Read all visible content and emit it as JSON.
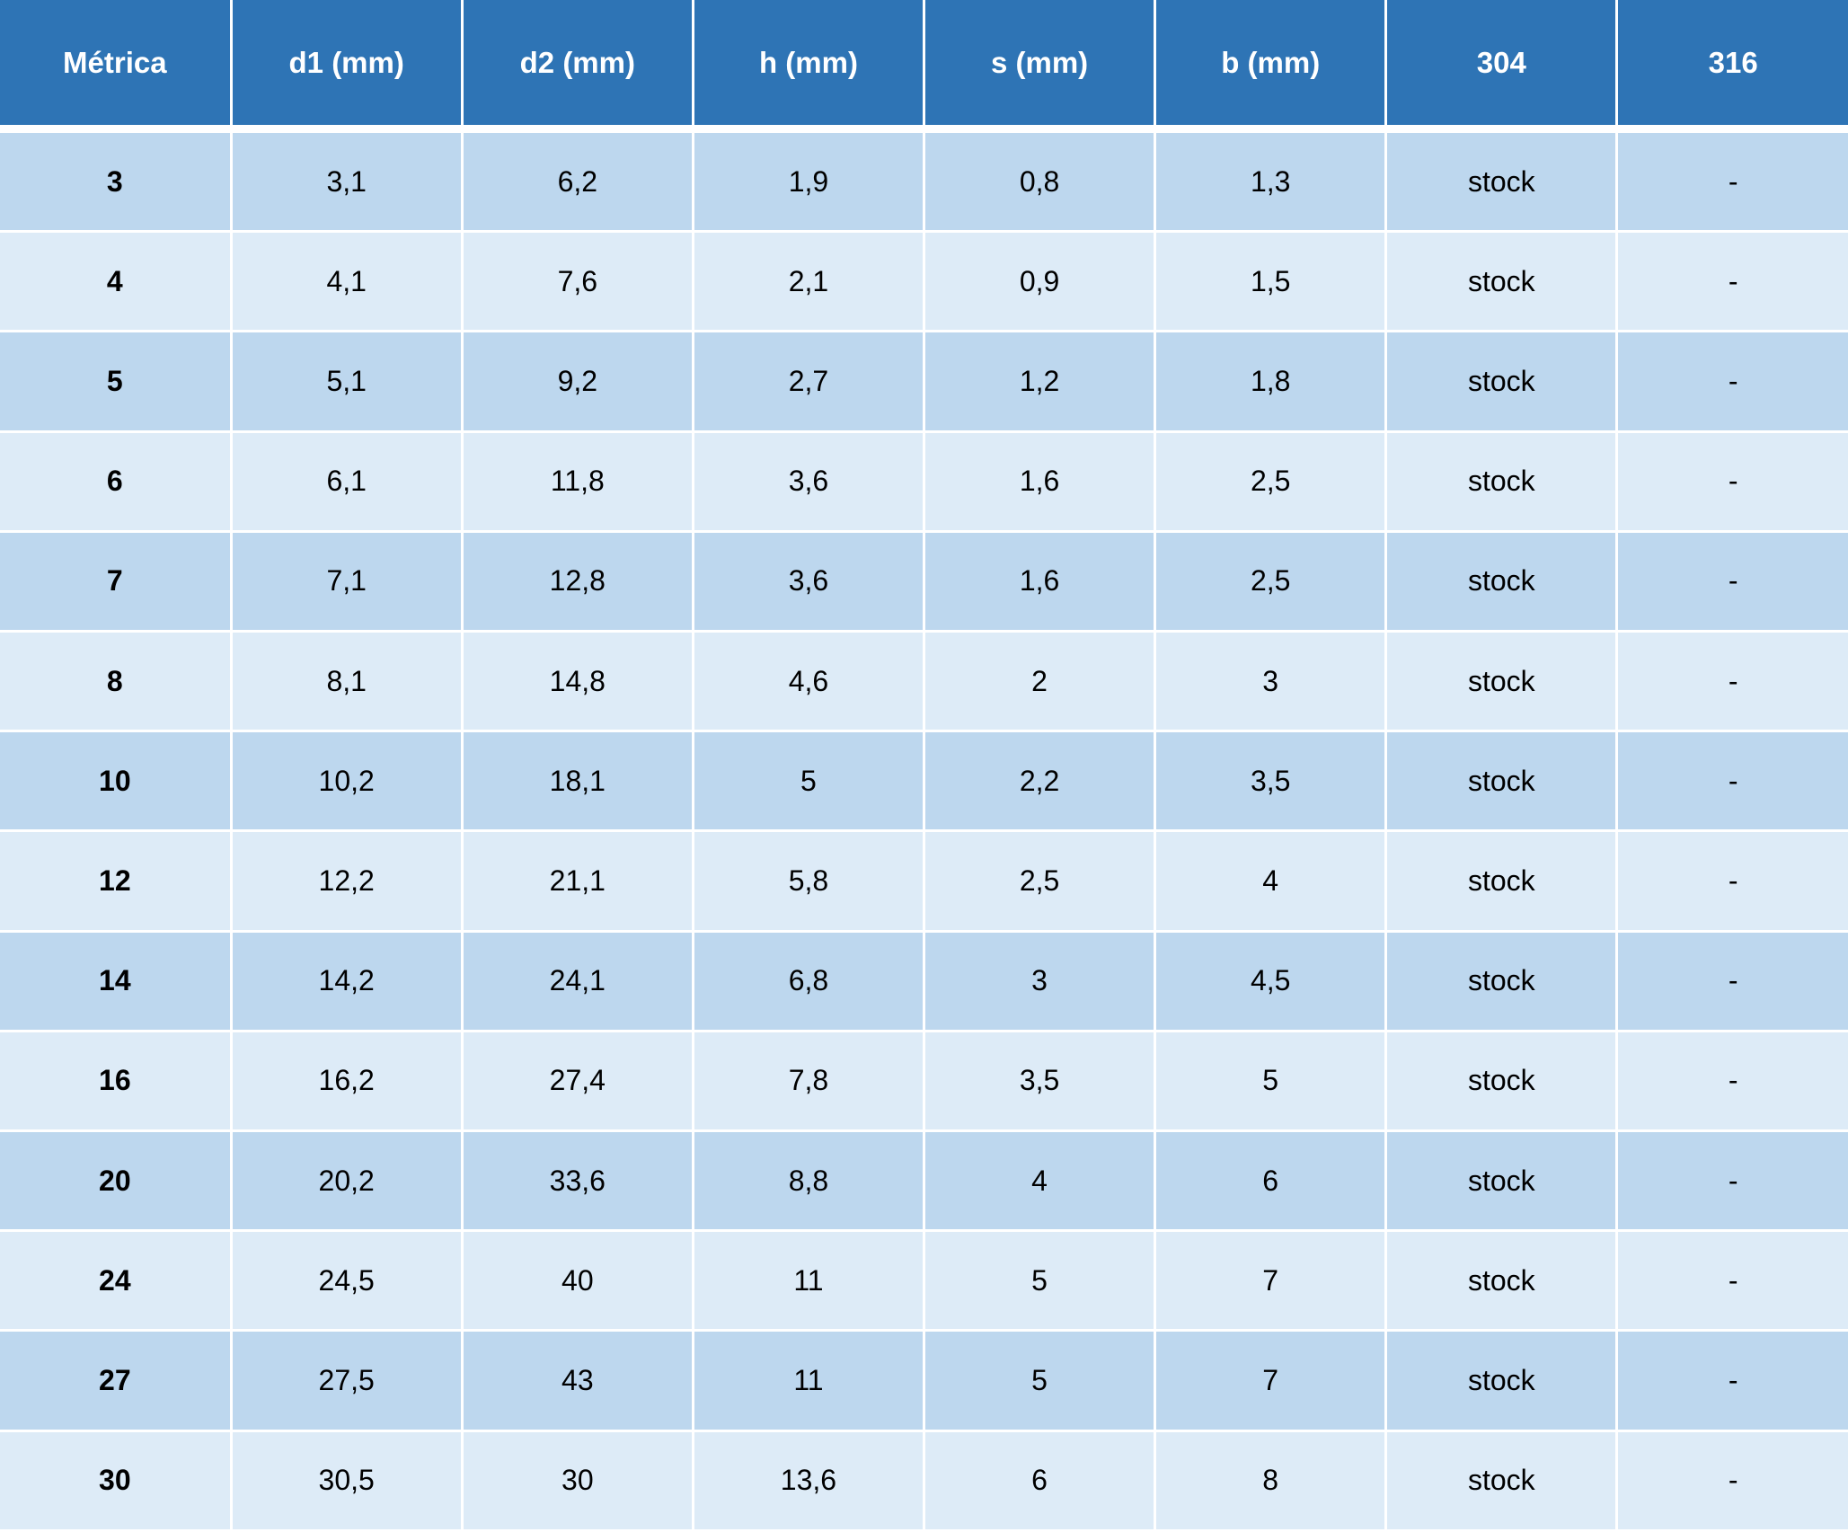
{
  "table": {
    "headers": [
      "Métrica",
      "d1 (mm)",
      "d2 (mm)",
      "h (mm)",
      "s (mm)",
      "b (mm)",
      "304",
      "316"
    ],
    "rows": [
      [
        "3",
        "3,1",
        "6,2",
        "1,9",
        "0,8",
        "1,3",
        "stock",
        "-"
      ],
      [
        "4",
        "4,1",
        "7,6",
        "2,1",
        "0,9",
        "1,5",
        "stock",
        "-"
      ],
      [
        "5",
        "5,1",
        "9,2",
        "2,7",
        "1,2",
        "1,8",
        "stock",
        "-"
      ],
      [
        "6",
        "6,1",
        "11,8",
        "3,6",
        "1,6",
        "2,5",
        "stock",
        "-"
      ],
      [
        "7",
        "7,1",
        "12,8",
        "3,6",
        "1,6",
        "2,5",
        "stock",
        "-"
      ],
      [
        "8",
        "8,1",
        "14,8",
        "4,6",
        "2",
        "3",
        "stock",
        "-"
      ],
      [
        "10",
        "10,2",
        "18,1",
        "5",
        "2,2",
        "3,5",
        "stock",
        "-"
      ],
      [
        "12",
        "12,2",
        "21,1",
        "5,8",
        "2,5",
        "4",
        "stock",
        "-"
      ],
      [
        "14",
        "14,2",
        "24,1",
        "6,8",
        "3",
        "4,5",
        "stock",
        "-"
      ],
      [
        "16",
        "16,2",
        "27,4",
        "7,8",
        "3,5",
        "5",
        "stock",
        "-"
      ],
      [
        "20",
        "20,2",
        "33,6",
        "8,8",
        "4",
        "6",
        "stock",
        "-"
      ],
      [
        "24",
        "24,5",
        "40",
        "11",
        "5",
        "7",
        "stock",
        "-"
      ],
      [
        "27",
        "27,5",
        "43",
        "11",
        "5",
        "7",
        "stock",
        "-"
      ],
      [
        "30",
        "30,5",
        "30",
        "13,6",
        "6",
        "8",
        "stock",
        "-"
      ]
    ]
  },
  "colors": {
    "header_bg": "#2e74b5",
    "row_dark": "#bdd7ee",
    "row_light": "#ddebf7"
  }
}
